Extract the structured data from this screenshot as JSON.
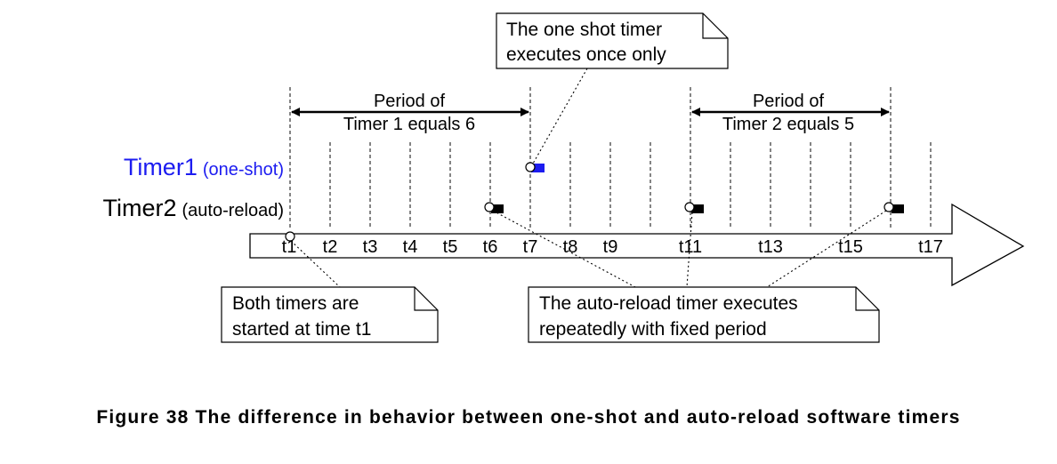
{
  "colors": {
    "timer1": "#1c1cf0",
    "line": "#000000",
    "fill": "#ffffff"
  },
  "timer1": {
    "name": "Timer1",
    "mode": "(one-shot)"
  },
  "timer2": {
    "name": "Timer2",
    "mode": "(auto-reload)"
  },
  "ticks": [
    "t1",
    "t2",
    "t3",
    "t4",
    "t5",
    "t6",
    "t7",
    "t8",
    "t9",
    "t11",
    "t13",
    "t15",
    "t17"
  ],
  "period1": {
    "line1": "Period of",
    "line2": "Timer 1 equals 6"
  },
  "period2": {
    "line1": "Period of",
    "line2": "Timer 2 equals 5"
  },
  "note_oneshot": {
    "line1": "The one shot timer",
    "line2": "executes once only"
  },
  "note_start": {
    "line1": "Both timers are",
    "line2": "started at time t1"
  },
  "note_autoreload": {
    "line1": "The auto-reload timer executes",
    "line2": "repeatedly with fixed period"
  },
  "caption": "Figure 38 The difference in behavior between one-shot and auto-reload software timers"
}
